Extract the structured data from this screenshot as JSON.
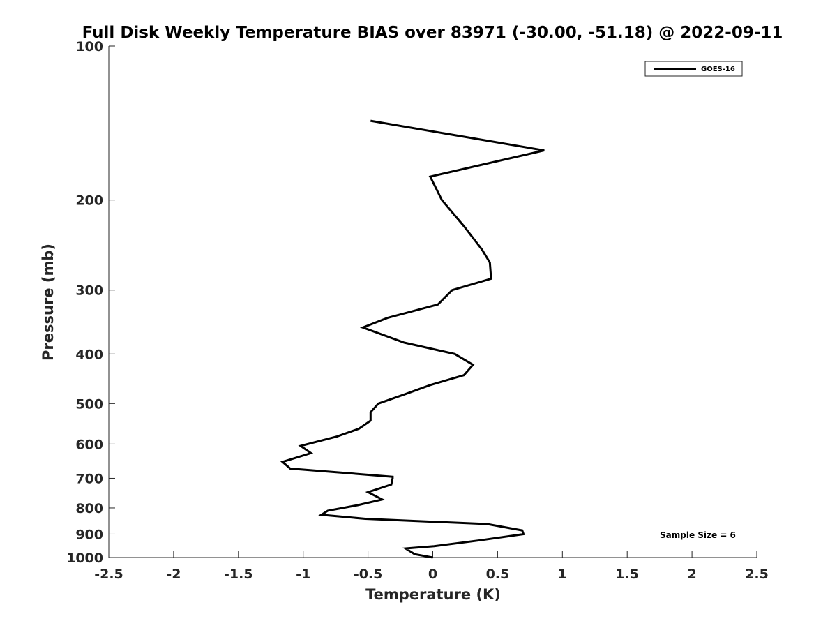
{
  "chart_data": {
    "type": "line",
    "title": "Full Disk Weekly Temperature BIAS over 83971 (-30.00, -51.18) @ 2022-09-11",
    "xlabel": "Temperature (K)",
    "ylabel": "Pressure (mb)",
    "xlim": [
      -2.5,
      2.5
    ],
    "ylim": [
      100,
      1000
    ],
    "y_scale": "log",
    "y_reversed": true,
    "x_ticks": [
      "-2.5",
      "-2",
      "-1.5",
      "-1",
      "-0.5",
      "0",
      "0.5",
      "1",
      "1.5",
      "2",
      "2.5"
    ],
    "y_ticks": [
      "100",
      "200",
      "300",
      "400",
      "500",
      "600",
      "700",
      "800",
      "900",
      "1000"
    ],
    "grid": false,
    "legend_position": "top-right",
    "annotation": "Sample Size = 6",
    "series": [
      {
        "name": "GOES-16",
        "color": "#000000",
        "points": [
          {
            "x": -0.48,
            "p": 140
          },
          {
            "x": 0.86,
            "p": 160
          },
          {
            "x": -0.02,
            "p": 180
          },
          {
            "x": 0.07,
            "p": 200
          },
          {
            "x": 0.24,
            "p": 225
          },
          {
            "x": 0.38,
            "p": 250
          },
          {
            "x": 0.44,
            "p": 265
          },
          {
            "x": 0.45,
            "p": 285
          },
          {
            "x": 0.15,
            "p": 300
          },
          {
            "x": 0.04,
            "p": 320
          },
          {
            "x": -0.35,
            "p": 340
          },
          {
            "x": -0.54,
            "p": 355
          },
          {
            "x": -0.22,
            "p": 380
          },
          {
            "x": 0.17,
            "p": 400
          },
          {
            "x": 0.31,
            "p": 420
          },
          {
            "x": 0.24,
            "p": 440
          },
          {
            "x": -0.02,
            "p": 460
          },
          {
            "x": -0.22,
            "p": 480
          },
          {
            "x": -0.42,
            "p": 500
          },
          {
            "x": -0.48,
            "p": 520
          },
          {
            "x": -0.48,
            "p": 540
          },
          {
            "x": -0.57,
            "p": 560
          },
          {
            "x": -0.74,
            "p": 580
          },
          {
            "x": -1.02,
            "p": 605
          },
          {
            "x": -0.94,
            "p": 625
          },
          {
            "x": -1.16,
            "p": 650
          },
          {
            "x": -1.1,
            "p": 670
          },
          {
            "x": -0.31,
            "p": 695
          },
          {
            "x": -0.31,
            "p": 700
          },
          {
            "x": -0.32,
            "p": 720
          },
          {
            "x": -0.5,
            "p": 745
          },
          {
            "x": -0.39,
            "p": 770
          },
          {
            "x": -0.58,
            "p": 790
          },
          {
            "x": -0.81,
            "p": 810
          },
          {
            "x": -0.86,
            "p": 825
          },
          {
            "x": -0.52,
            "p": 840
          },
          {
            "x": 0.42,
            "p": 860
          },
          {
            "x": 0.69,
            "p": 885
          },
          {
            "x": 0.7,
            "p": 900
          },
          {
            "x": 0.37,
            "p": 925
          },
          {
            "x": 0.01,
            "p": 950
          },
          {
            "x": -0.21,
            "p": 960
          },
          {
            "x": -0.14,
            "p": 985
          },
          {
            "x": 0.0,
            "p": 1000
          }
        ]
      }
    ]
  }
}
